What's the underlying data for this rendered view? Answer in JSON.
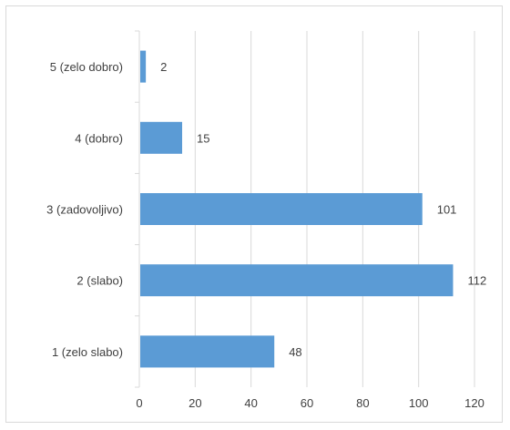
{
  "chart_data": {
    "type": "bar",
    "orientation": "horizontal",
    "title": "",
    "xlabel": "",
    "ylabel": "",
    "categories": [
      "5 (zelo dobro)",
      "4 (dobro)",
      "3 (zadovoljivo)",
      "2 (slabo)",
      "1 (zelo slabo)"
    ],
    "values": [
      2,
      15,
      101,
      112,
      48
    ],
    "data_labels": [
      "2",
      "15",
      "101",
      "112",
      "48"
    ],
    "xlim": [
      0,
      120
    ],
    "x_ticks": [
      "0",
      "20",
      "40",
      "60",
      "80",
      "100",
      "120"
    ],
    "grid": "vertical",
    "legend": "none",
    "bar_color": "#5b9bd5",
    "grid_color": "#d9d9d9",
    "text_color": "#404040"
  }
}
